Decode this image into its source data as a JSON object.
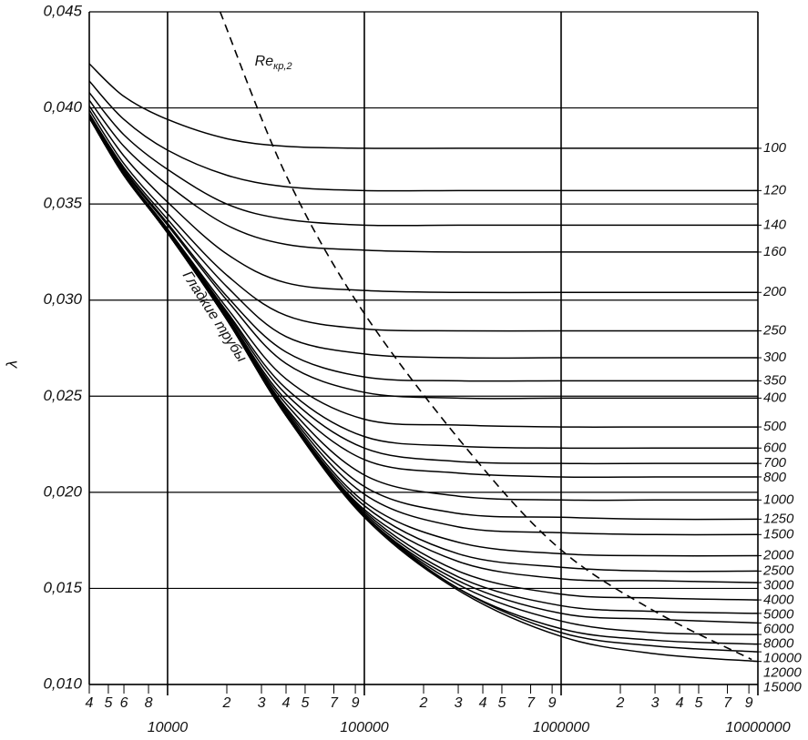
{
  "chart_data": {
    "type": "line",
    "y_label": "λ",
    "xlog": true,
    "grid": true,
    "color": "#000000",
    "xlim": [
      4000,
      10000000
    ],
    "ylim": [
      0.01,
      0.045
    ],
    "yticks": [
      {
        "value": 0.045,
        "label": "0,045"
      },
      {
        "value": 0.04,
        "label": "0,040"
      },
      {
        "value": 0.035,
        "label": "0,035"
      },
      {
        "value": 0.03,
        "label": "0,030"
      },
      {
        "value": 0.025,
        "label": "0,025"
      },
      {
        "value": 0.02,
        "label": "0,020"
      },
      {
        "value": 0.015,
        "label": "0,015"
      },
      {
        "value": 0.01,
        "label": "0,010"
      }
    ],
    "xticks": [
      {
        "value": 4000,
        "label": "4"
      },
      {
        "value": 5000,
        "label": "5"
      },
      {
        "value": 6000,
        "label": "6"
      },
      {
        "value": 8000,
        "label": "8"
      },
      {
        "value": 20000,
        "label": "2"
      },
      {
        "value": 30000,
        "label": "3"
      },
      {
        "value": 40000,
        "label": "4"
      },
      {
        "value": 50000,
        "label": "5"
      },
      {
        "value": 70000,
        "label": "7"
      },
      {
        "value": 90000,
        "label": "9"
      },
      {
        "value": 200000,
        "label": "2"
      },
      {
        "value": 300000,
        "label": "3"
      },
      {
        "value": 400000,
        "label": "4"
      },
      {
        "value": 500000,
        "label": "5"
      },
      {
        "value": 700000,
        "label": "7"
      },
      {
        "value": 900000,
        "label": "9"
      },
      {
        "value": 2000000,
        "label": "2"
      },
      {
        "value": 3000000,
        "label": "3"
      },
      {
        "value": 4000000,
        "label": "4"
      },
      {
        "value": 5000000,
        "label": "5"
      },
      {
        "value": 7000000,
        "label": "7"
      },
      {
        "value": 9000000,
        "label": "9"
      }
    ],
    "xticks_major": [
      10000,
      100000,
      1000000,
      10000000
    ],
    "x": [
      4000,
      6000,
      10000,
      20000,
      40000,
      100000,
      300000,
      1000000,
      3000000,
      10000000
    ],
    "series": [
      {
        "name": "100",
        "values": [
          0.0423,
          0.0406,
          0.0394,
          0.0384,
          0.038,
          0.0379,
          0.0379,
          0.0379,
          0.0379,
          0.0379
        ]
      },
      {
        "name": "120",
        "values": [
          0.0414,
          0.0394,
          0.0378,
          0.0365,
          0.0359,
          0.0357,
          0.0357,
          0.0357,
          0.0357,
          0.0357
        ]
      },
      {
        "name": "140",
        "values": [
          0.0408,
          0.0386,
          0.0368,
          0.035,
          0.0342,
          0.0339,
          0.0339,
          0.0339,
          0.0339,
          0.0339
        ]
      },
      {
        "name": "160",
        "values": [
          0.0404,
          0.038,
          0.036,
          0.0339,
          0.0329,
          0.0326,
          0.0325,
          0.0325,
          0.0325,
          0.0325
        ]
      },
      {
        "name": "200",
        "values": [
          0.0401,
          0.0375,
          0.0351,
          0.0324,
          0.0309,
          0.0305,
          0.0304,
          0.0304,
          0.0304,
          0.0304
        ]
      },
      {
        "name": "250",
        "values": [
          0.0399,
          0.0371,
          0.0345,
          0.0313,
          0.0292,
          0.0285,
          0.0284,
          0.0284,
          0.0284,
          0.0284
        ]
      },
      {
        "name": "300",
        "values": [
          0.0397,
          0.0369,
          0.0342,
          0.0307,
          0.0281,
          0.0272,
          0.027,
          0.027,
          0.027,
          0.027
        ]
      },
      {
        "name": "350",
        "values": [
          0.0397,
          0.0368,
          0.034,
          0.0302,
          0.0273,
          0.026,
          0.0258,
          0.0258,
          0.0258,
          0.0258
        ]
      },
      {
        "name": "400",
        "values": [
          0.0396,
          0.0367,
          0.0339,
          0.03,
          0.0267,
          0.0252,
          0.0249,
          0.0249,
          0.0249,
          0.0249
        ]
      },
      {
        "name": "500",
        "values": [
          0.0396,
          0.0366,
          0.0337,
          0.0296,
          0.0259,
          0.0238,
          0.0235,
          0.0234,
          0.0234,
          0.0234
        ]
      },
      {
        "name": "600",
        "values": [
          0.0396,
          0.0366,
          0.0337,
          0.0294,
          0.0254,
          0.0229,
          0.0224,
          0.0223,
          0.0223,
          0.0223
        ]
      },
      {
        "name": "700",
        "values": [
          0.0395,
          0.0366,
          0.0336,
          0.0293,
          0.0251,
          0.0223,
          0.0216,
          0.0215,
          0.0215,
          0.0215
        ]
      },
      {
        "name": "800",
        "values": [
          0.0395,
          0.0366,
          0.0336,
          0.0292,
          0.0248,
          0.0217,
          0.021,
          0.0208,
          0.0208,
          0.0208
        ]
      },
      {
        "name": "1000",
        "values": [
          0.0395,
          0.0365,
          0.0336,
          0.0291,
          0.0246,
          0.0209,
          0.0198,
          0.0196,
          0.0196,
          0.0196
        ]
      },
      {
        "name": "1250",
        "values": [
          0.0395,
          0.0365,
          0.0335,
          0.0291,
          0.0244,
          0.0203,
          0.0189,
          0.0187,
          0.0186,
          0.0186
        ]
      },
      {
        "name": "1500",
        "values": [
          0.0395,
          0.0365,
          0.0335,
          0.0291,
          0.0243,
          0.0199,
          0.0182,
          0.0179,
          0.0178,
          0.0178
        ]
      },
      {
        "name": "2000",
        "values": [
          0.0395,
          0.0365,
          0.0335,
          0.029,
          0.0242,
          0.0195,
          0.0174,
          0.0168,
          0.0167,
          0.0167
        ]
      },
      {
        "name": "2500",
        "values": [
          0.0395,
          0.0365,
          0.0335,
          0.029,
          0.0241,
          0.0193,
          0.0168,
          0.0161,
          0.0159,
          0.0159
        ]
      },
      {
        "name": "3000",
        "values": [
          0.0395,
          0.0365,
          0.0335,
          0.029,
          0.0241,
          0.0191,
          0.0164,
          0.0155,
          0.0154,
          0.0153
        ]
      },
      {
        "name": "4000",
        "values": [
          0.0395,
          0.0365,
          0.0335,
          0.029,
          0.024,
          0.019,
          0.0159,
          0.0147,
          0.0145,
          0.0144
        ]
      },
      {
        "name": "5000",
        "values": [
          0.0395,
          0.0365,
          0.0335,
          0.029,
          0.024,
          0.0189,
          0.0156,
          0.0141,
          0.0138,
          0.0137
        ]
      },
      {
        "name": "6000",
        "values": [
          0.0395,
          0.0365,
          0.0335,
          0.029,
          0.024,
          0.0188,
          0.0154,
          0.0137,
          0.0134,
          0.0132
        ]
      },
      {
        "name": "8000",
        "values": [
          0.0395,
          0.0365,
          0.0335,
          0.029,
          0.024,
          0.0188,
          0.0152,
          0.0133,
          0.0127,
          0.0126
        ]
      },
      {
        "name": "10000",
        "values": [
          0.0395,
          0.0365,
          0.0335,
          0.029,
          0.024,
          0.0188,
          0.015,
          0.0129,
          0.0123,
          0.0121
        ]
      },
      {
        "name": "12000",
        "values": [
          0.0395,
          0.0365,
          0.0335,
          0.029,
          0.024,
          0.0188,
          0.015,
          0.0127,
          0.012,
          0.0117
        ]
      },
      {
        "name": "15000",
        "values": [
          0.0395,
          0.0365,
          0.0335,
          0.029,
          0.024,
          0.0187,
          0.0149,
          0.0125,
          0.0116,
          0.0112
        ]
      }
    ],
    "smooth": {
      "name": "Гладкие трубы",
      "values": [
        0.0395,
        0.0365,
        0.0335,
        0.029,
        0.024,
        0.0187,
        null,
        null,
        null,
        null
      ]
    },
    "critical": {
      "name": "Re",
      "name_sub": "кр,2",
      "x": [
        18500,
        40000,
        100000,
        355000,
        1000000,
        3000000,
        9300000
      ],
      "values": [
        0.045,
        0.0365,
        0.0293,
        0.0219,
        0.017,
        0.0138,
        0.0113
      ]
    }
  }
}
